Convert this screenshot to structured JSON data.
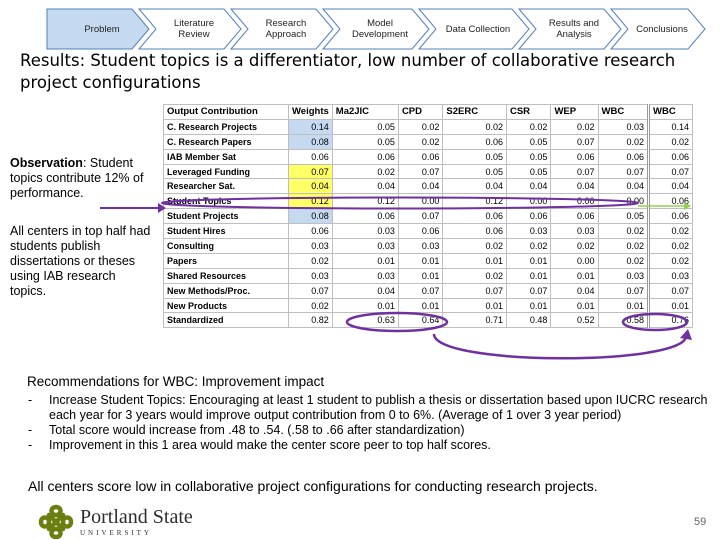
{
  "steps": [
    "Problem",
    "Literature Review",
    "Research Approach",
    "Model Development",
    "Data Collection",
    "Results and Analysis",
    "Conclusions"
  ],
  "title": "Results: Student topics is a differentiator, low number of collaborative research project configurations",
  "observation": {
    "label": "Observation",
    "text": ": Student topics contribute 12% of performance."
  },
  "side_note": "All centers in top half had students publish dissertations or theses using IAB research topics.",
  "table": {
    "headers": [
      "Output Contribution",
      "Weights",
      "Ma2JIC",
      "CPD",
      "S2ERC",
      "CSR",
      "WEP",
      "WBC",
      "WBC"
    ],
    "rows": [
      {
        "label": "C. Research Projects",
        "values": [
          "0.14",
          "0.05",
          "0.02",
          "0.02",
          "0.02",
          "0.02",
          "0.03",
          "0.14"
        ],
        "hl": "blue"
      },
      {
        "label": "C. Research Papers",
        "values": [
          "0.08",
          "0.05",
          "0.02",
          "0.06",
          "0.05",
          "0.07",
          "0.02",
          "0.02"
        ],
        "hl": "blue"
      },
      {
        "label": "IAB Member Sat",
        "values": [
          "0.06",
          "0.06",
          "0.06",
          "0.05",
          "0.05",
          "0.06",
          "0.06",
          "0.06"
        ],
        "hl": ""
      },
      {
        "label": "Leveraged Funding",
        "values": [
          "0.07",
          "0.02",
          "0.07",
          "0.05",
          "0.05",
          "0.07",
          "0.07",
          "0.07"
        ],
        "hl": "yellow"
      },
      {
        "label": "Researcher Sat.",
        "values": [
          "0.04",
          "0.04",
          "0.04",
          "0.04",
          "0.04",
          "0.04",
          "0.04",
          "0.04"
        ],
        "hl": "yellow"
      },
      {
        "label": "Student Topics",
        "values": [
          "0.12",
          "0.12",
          "0.00",
          "0.12",
          "0.00",
          "0.00",
          "0.00",
          "0.06"
        ],
        "hl": "yellow"
      },
      {
        "label": "Student Projects",
        "values": [
          "0.08",
          "0.06",
          "0.07",
          "0.06",
          "0.06",
          "0.06",
          "0.05",
          "0.06"
        ],
        "hl": "blue"
      },
      {
        "label": "Student Hires",
        "values": [
          "0.06",
          "0.03",
          "0.06",
          "0.06",
          "0.03",
          "0.03",
          "0.02",
          "0.02"
        ],
        "hl": ""
      },
      {
        "label": "Consulting",
        "values": [
          "0.03",
          "0.03",
          "0.03",
          "0.02",
          "0.02",
          "0.02",
          "0.02",
          "0.02"
        ],
        "hl": ""
      },
      {
        "label": "Papers",
        "values": [
          "0.02",
          "0.01",
          "0.01",
          "0.01",
          "0.01",
          "0.00",
          "0.02",
          "0.02"
        ],
        "hl": ""
      },
      {
        "label": "Shared Resources",
        "values": [
          "0.03",
          "0.03",
          "0.01",
          "0.02",
          "0.01",
          "0.01",
          "0.03",
          "0.03"
        ],
        "hl": ""
      },
      {
        "label": "New Methods/Proc.",
        "values": [
          "0.07",
          "0.04",
          "0.07",
          "0.07",
          "0.07",
          "0.04",
          "0.07",
          "0.07"
        ],
        "hl": ""
      },
      {
        "label": "New Products",
        "values": [
          "0.02",
          "0.01",
          "0.01",
          "0.01",
          "0.01",
          "0.01",
          "0.01",
          "0.01"
        ],
        "hl": ""
      },
      {
        "label": "Standardized",
        "values": [
          "0.82",
          "0.63",
          "0.64",
          "0.71",
          "0.48",
          "0.52",
          "0.58",
          "0.76"
        ],
        "hl": ""
      }
    ]
  },
  "recommendations_title": "Recommendations for WBC: Improvement impact",
  "bullets": [
    {
      "dash": "-",
      "text": "Increase Student Topics: Encouraging at least 1 student to publish a thesis or dissertation based upon IUCRC research each year for 3 years would improve output contribution from 0 to 6%. (Average of 1 over 3 year period)"
    },
    {
      "dash": "-",
      "text": "Total score would increase from .48 to .54. (.58 to .66 after standardization)"
    },
    {
      "dash": "-",
      "text": "Improvement in this 1 area would make the center score peer to top half scores."
    }
  ],
  "bottom_text": "All centers score low in collaborative project configurations for conducting research projects.",
  "logo": {
    "main": "Portland State",
    "sub": "UNIVERSITY",
    "color": "#6a7f10"
  },
  "page_number": "59",
  "colors": {
    "chevron_first": "#c5d9f1",
    "chevron": "#ffffff",
    "chevron_border": "#4f81bd",
    "annotation": "#7030a0",
    "arrow_green": "#92d050"
  }
}
